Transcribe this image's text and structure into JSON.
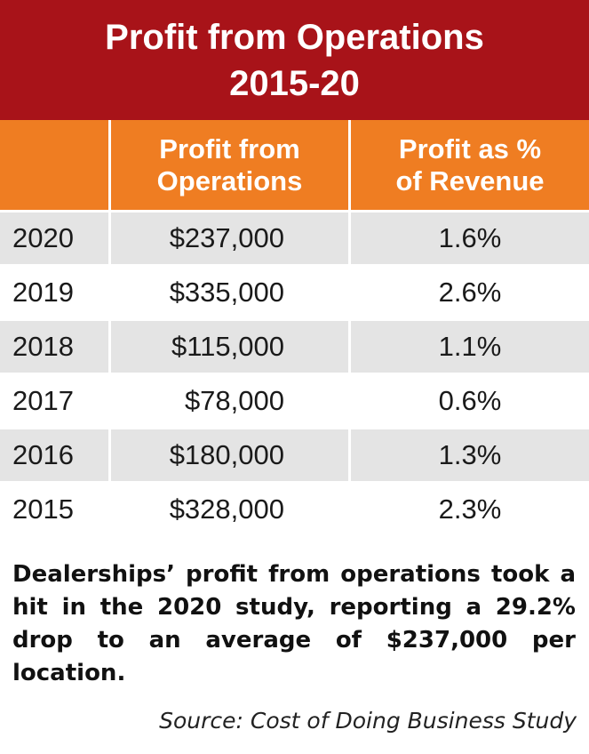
{
  "chart_data": {
    "type": "table",
    "title_line1": "Profit from Operations",
    "title_line2": "2015-20",
    "columns": {
      "profit_line1": "Profit from",
      "profit_line2": "Operations",
      "pct_line1": "Profit as %",
      "pct_line2": "of Revenue"
    },
    "rows": [
      {
        "year": "2020",
        "profit": "$237,000",
        "pct": "1.6%"
      },
      {
        "year": "2019",
        "profit": "$335,000",
        "pct": "2.6%"
      },
      {
        "year": "2018",
        "profit": "$115,000",
        "pct": "1.1%"
      },
      {
        "year": "2017",
        "profit": "$78,000",
        "pct": "0.6%"
      },
      {
        "year": "2016",
        "profit": "$180,000",
        "pct": "1.3%"
      },
      {
        "year": "2015",
        "profit": "$328,000",
        "pct": "2.3%"
      }
    ]
  },
  "caption": "Dealerships’ profit from operations took a hit in the 2020 study, reporting a 29.2% drop to an average of $237,000 per location.",
  "source": "Source: Cost of Doing Business Study",
  "colors": {
    "title_background": "#a81319",
    "header_background": "#ef7d22",
    "row_shade": "#e4e4e4"
  }
}
